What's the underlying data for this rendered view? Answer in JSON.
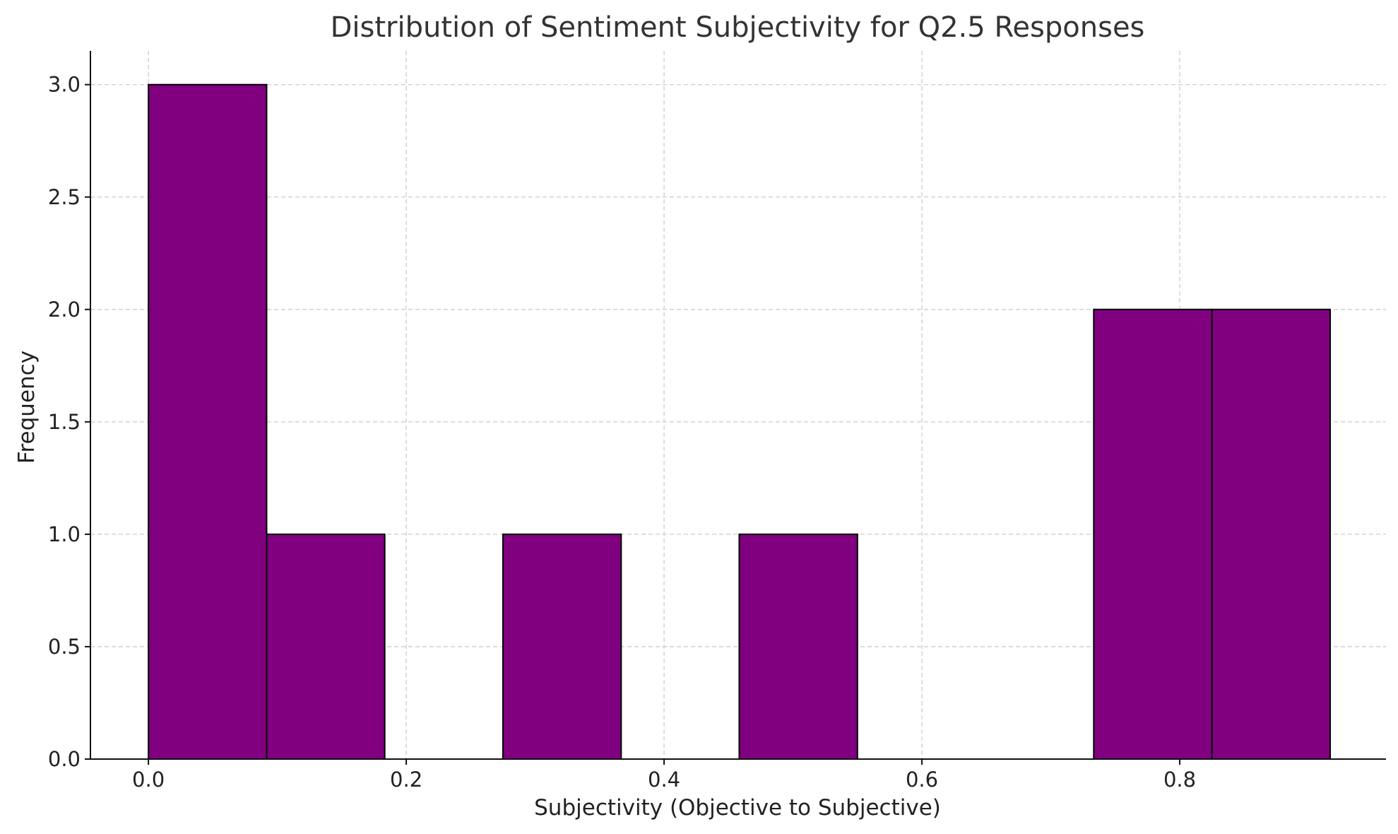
{
  "chart_data": {
    "type": "bar",
    "title": "Distribution of Sentiment Subjectivity for Q2.5 Responses",
    "xlabel": "Subjectivity (Objective to Subjective)",
    "ylabel": "Frequency",
    "xlim": [
      -0.045,
      0.96
    ],
    "ylim": [
      0,
      3.15
    ],
    "grid": true,
    "bar_color": "#800080",
    "edge_color": "#000000",
    "bins": [
      {
        "x_start": 0.0,
        "x_end": 0.0917,
        "count": 3
      },
      {
        "x_start": 0.0917,
        "x_end": 0.1833,
        "count": 1
      },
      {
        "x_start": 0.1833,
        "x_end": 0.275,
        "count": 0
      },
      {
        "x_start": 0.275,
        "x_end": 0.3667,
        "count": 1
      },
      {
        "x_start": 0.3667,
        "x_end": 0.4583,
        "count": 0
      },
      {
        "x_start": 0.4583,
        "x_end": 0.55,
        "count": 1
      },
      {
        "x_start": 0.55,
        "x_end": 0.6417,
        "count": 0
      },
      {
        "x_start": 0.6417,
        "x_end": 0.7333,
        "count": 0
      },
      {
        "x_start": 0.7333,
        "x_end": 0.825,
        "count": 2
      },
      {
        "x_start": 0.825,
        "x_end": 0.9167,
        "count": 2
      }
    ],
    "xticks": [
      {
        "value": 0.0,
        "label": "0.0"
      },
      {
        "value": 0.2,
        "label": "0.2"
      },
      {
        "value": 0.4,
        "label": "0.4"
      },
      {
        "value": 0.6,
        "label": "0.6"
      },
      {
        "value": 0.8,
        "label": "0.8"
      }
    ],
    "yticks": [
      {
        "value": 0.0,
        "label": "0.0"
      },
      {
        "value": 0.5,
        "label": "0.5"
      },
      {
        "value": 1.0,
        "label": "1.0"
      },
      {
        "value": 1.5,
        "label": "1.5"
      },
      {
        "value": 2.0,
        "label": "2.0"
      },
      {
        "value": 2.5,
        "label": "2.5"
      },
      {
        "value": 3.0,
        "label": "3.0"
      }
    ]
  }
}
